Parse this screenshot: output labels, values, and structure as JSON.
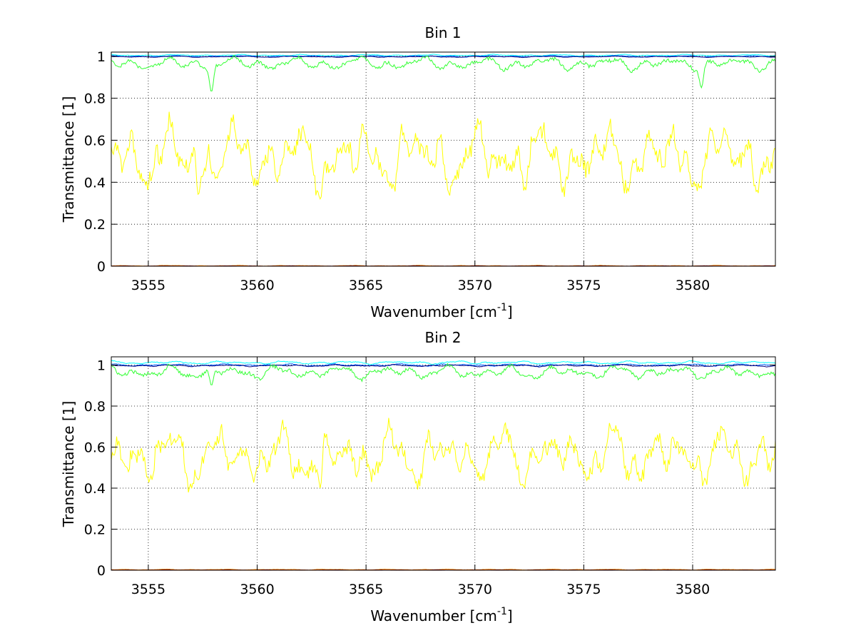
{
  "figure": {
    "colors": {
      "background": "#ffffff",
      "axes": "#000000",
      "grid": "#000000"
    }
  },
  "chart_data": [
    {
      "type": "line",
      "title": "Bin 1",
      "xlabel": "Wavenumber [cm-1]",
      "xlabel_base": "Wavenumber [cm",
      "xlabel_sup": "-1",
      "xlabel_end": "]",
      "ylabel": "Transmittance [1]",
      "xlim": [
        3553.3,
        3583.8
      ],
      "ylim": [
        0,
        1.02
      ],
      "xticks": [
        3555,
        3560,
        3565,
        3570,
        3575,
        3580
      ],
      "yticks": [
        0,
        0.2,
        0.4,
        0.6,
        0.8,
        1
      ],
      "ytick_labels": [
        "0",
        "0.2",
        "0.4",
        "0.6",
        "0.8",
        "1"
      ],
      "grid": true,
      "series": [
        {
          "color": "#00ffff",
          "mean": 1.005,
          "amp": 0.004,
          "seed": 11
        },
        {
          "color": "#0060ff",
          "mean": 1.0,
          "amp": 0.004,
          "seed": 12
        },
        {
          "color": "#000080",
          "mean": 0.998,
          "amp": 0.003,
          "seed": 13
        },
        {
          "color": "#33ff33",
          "mean": 0.965,
          "amp": 0.035,
          "seed": 14,
          "dips": [
            [
              3557.9,
              0.83
            ],
            [
              3580.4,
              0.85
            ]
          ]
        },
        {
          "color": "#ffff00",
          "mean": 0.57,
          "amp": 0.16,
          "seed": 15,
          "dips": [
            [
              3557.3,
              0.34
            ],
            [
              3562.9,
              0.32
            ]
          ]
        },
        {
          "color": "#ff8000",
          "mean": 0.002,
          "amp": 0.002,
          "seed": 16
        },
        {
          "color": "#800000",
          "mean": 0.001,
          "amp": 0.001,
          "seed": 17
        }
      ]
    },
    {
      "type": "line",
      "title": "Bin 2",
      "xlabel": "Wavenumber [cm-1]",
      "xlabel_base": "Wavenumber [cm",
      "xlabel_sup": "-1",
      "xlabel_end": "]",
      "ylabel": "Transmittance [1]",
      "xlim": [
        3553.3,
        3583.8
      ],
      "ylim": [
        0,
        1.04
      ],
      "xticks": [
        3555,
        3560,
        3565,
        3570,
        3575,
        3580
      ],
      "yticks": [
        0,
        0.2,
        0.4,
        0.6,
        0.8,
        1
      ],
      "ytick_labels": [
        "0",
        "0.2",
        "0.4",
        "0.6",
        "0.8",
        "1"
      ],
      "grid": true,
      "series": [
        {
          "color": "#00ffff",
          "mean": 1.012,
          "amp": 0.008,
          "seed": 21
        },
        {
          "color": "#0060ff",
          "mean": 1.0,
          "amp": 0.006,
          "seed": 22
        },
        {
          "color": "#000080",
          "mean": 0.997,
          "amp": 0.005,
          "seed": 23
        },
        {
          "color": "#33ff33",
          "mean": 0.965,
          "amp": 0.035,
          "seed": 24,
          "dips": [
            [
              3557.9,
              0.9
            ],
            [
              3580.4,
              0.94
            ]
          ]
        },
        {
          "color": "#ffff00",
          "mean": 0.6,
          "amp": 0.14,
          "seed": 25,
          "dips": [
            [
              3557.3,
              0.44
            ],
            [
              3562.9,
              0.4
            ]
          ]
        },
        {
          "color": "#ff8000",
          "mean": 0.003,
          "amp": 0.002,
          "seed": 26
        },
        {
          "color": "#800000",
          "mean": 0.001,
          "amp": 0.001,
          "seed": 27
        }
      ]
    }
  ]
}
